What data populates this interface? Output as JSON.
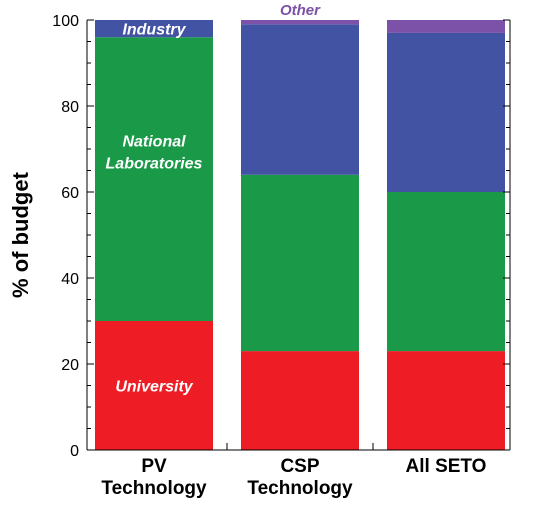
{
  "chart_data": {
    "type": "bar",
    "stacked": true,
    "categories": [
      [
        "PV",
        "Technology"
      ],
      [
        "CSP",
        "Technology"
      ],
      [
        "All SETO"
      ]
    ],
    "series": [
      {
        "name": "University",
        "color": "#ee1c25",
        "values": [
          30,
          23,
          23
        ]
      },
      {
        "name": "National Laboratories",
        "color": "#1a9a48",
        "values": [
          66,
          41,
          37
        ]
      },
      {
        "name": "Industry",
        "color": "#4353a4",
        "values": [
          4,
          35,
          37
        ]
      },
      {
        "name": "Other",
        "color": "#7b52a8",
        "values": [
          0,
          1,
          3
        ]
      }
    ],
    "segment_labels": [
      {
        "series": 0,
        "category": 0,
        "text": "University"
      },
      {
        "series": 1,
        "category": 0,
        "lines": [
          "National",
          "Laboratories"
        ]
      },
      {
        "series": 2,
        "category": 0,
        "text": "Industry"
      }
    ],
    "annotations": [
      {
        "text": "Other",
        "color": "#7b52a8",
        "category": 1,
        "placement": "above-top"
      }
    ],
    "title": "",
    "xlabel": "",
    "ylabel": "% of budget",
    "ylim": [
      0,
      100
    ],
    "yticks": [
      0,
      20,
      40,
      60,
      80,
      100
    ],
    "grid": false,
    "legend": "none (inline labels)"
  }
}
